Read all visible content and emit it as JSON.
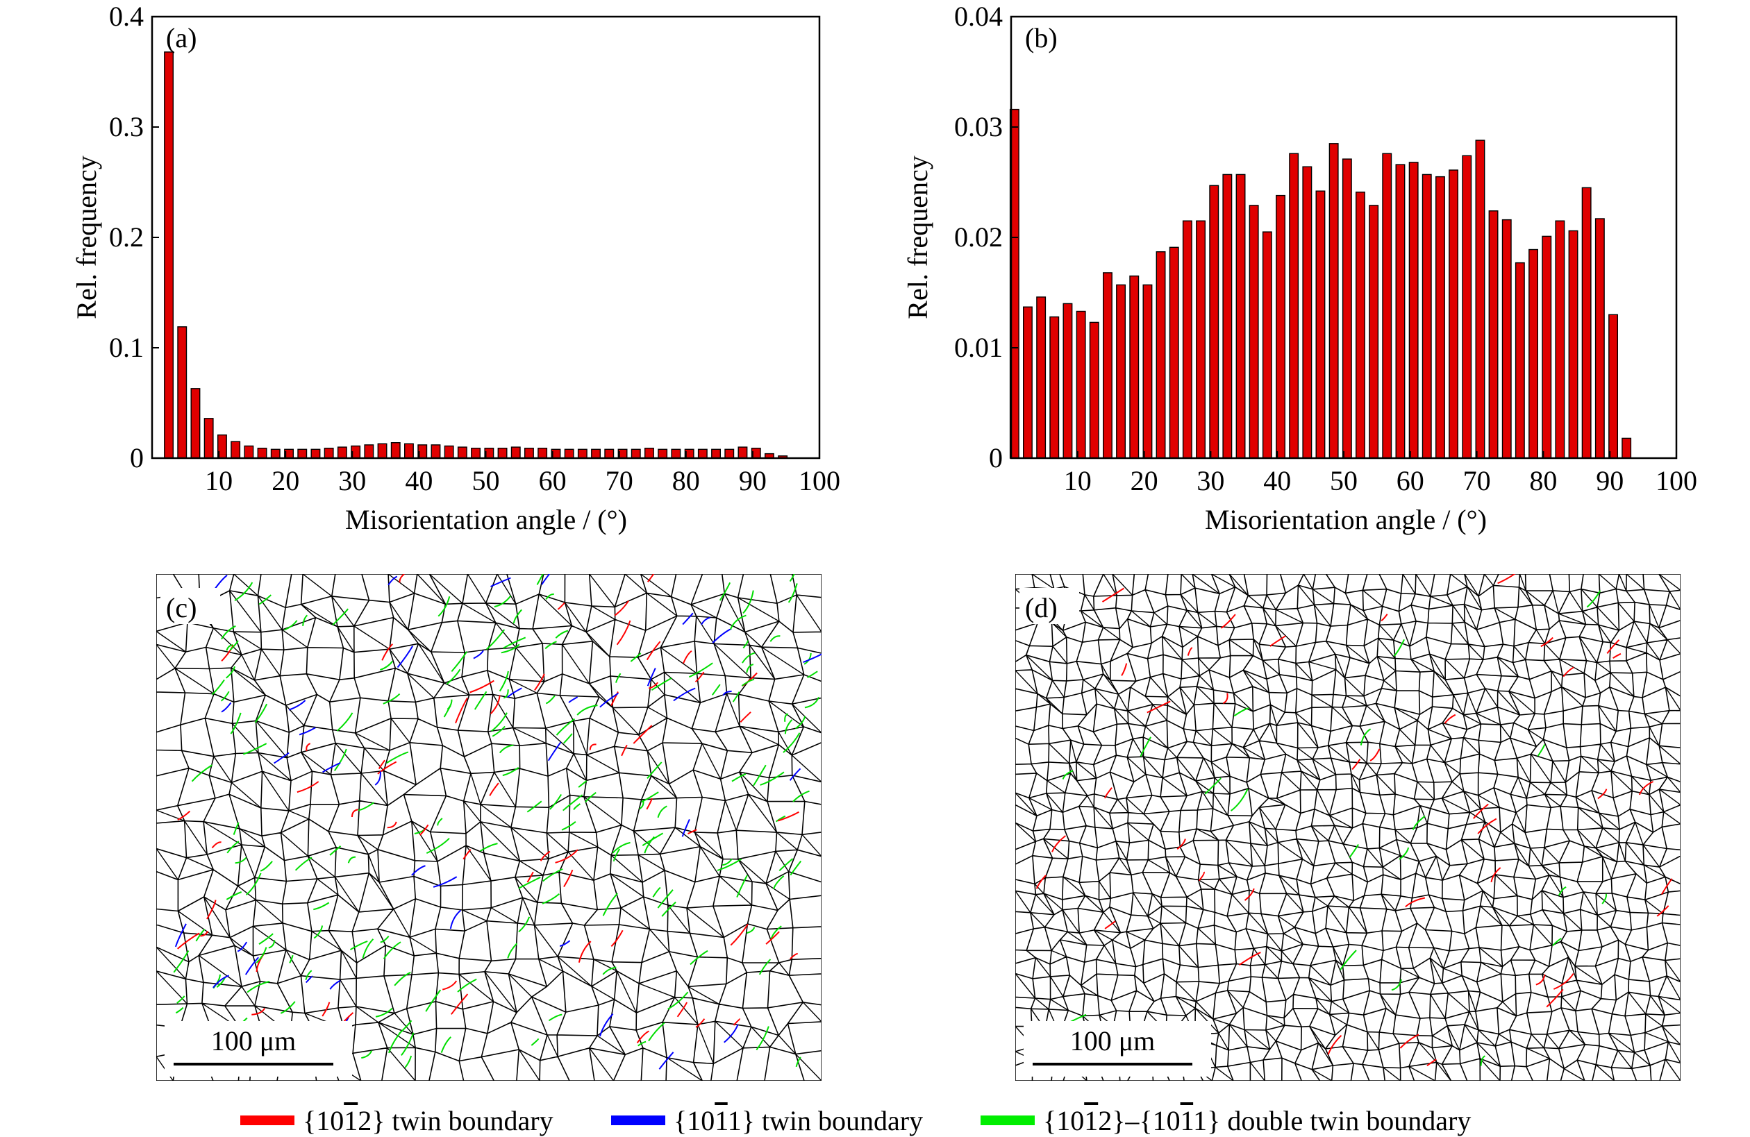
{
  "chart_data": [
    {
      "type": "bar",
      "panel": "(a)",
      "xlabel": "Misorientation angle / (°)",
      "ylabel": "Rel. frequency",
      "xlim": [
        0,
        100
      ],
      "ylim": [
        0,
        0.4
      ],
      "x_ticks": [
        10,
        20,
        30,
        40,
        50,
        60,
        70,
        80,
        90,
        100
      ],
      "y_ticks": [
        0,
        0.1,
        0.2,
        0.3,
        0.4
      ],
      "y_tick_labels": [
        "0",
        "0.1",
        "0.2",
        "0.3",
        "0.4"
      ],
      "x": [
        2.5,
        4.5,
        6.5,
        8.5,
        10.5,
        12.5,
        14.5,
        16.5,
        18.5,
        20.5,
        22.5,
        24.5,
        26.5,
        28.5,
        30.5,
        32.5,
        34.5,
        36.5,
        38.5,
        40.5,
        42.5,
        44.5,
        46.5,
        48.5,
        50.5,
        52.5,
        54.5,
        56.5,
        58.5,
        60.5,
        62.5,
        64.5,
        66.5,
        68.5,
        70.5,
        72.5,
        74.5,
        76.5,
        78.5,
        80.5,
        82.5,
        84.5,
        86.5,
        88.5,
        90.5,
        92.5,
        94.5
      ],
      "values": [
        0.368,
        0.119,
        0.063,
        0.036,
        0.021,
        0.015,
        0.011,
        0.009,
        0.008,
        0.008,
        0.008,
        0.008,
        0.009,
        0.01,
        0.011,
        0.012,
        0.013,
        0.014,
        0.013,
        0.012,
        0.012,
        0.011,
        0.01,
        0.009,
        0.009,
        0.009,
        0.01,
        0.009,
        0.009,
        0.008,
        0.008,
        0.008,
        0.008,
        0.008,
        0.008,
        0.008,
        0.009,
        0.008,
        0.008,
        0.008,
        0.008,
        0.008,
        0.008,
        0.01,
        0.009,
        0.004,
        0.002
      ]
    },
    {
      "type": "bar",
      "panel": "(b)",
      "xlabel": "Misorientation angle / (°)",
      "ylabel": "Rel. frequency",
      "xlim": [
        0,
        100
      ],
      "ylim": [
        0,
        0.04
      ],
      "x_ticks": [
        10,
        20,
        30,
        40,
        50,
        60,
        70,
        80,
        90,
        100
      ],
      "y_ticks": [
        0,
        0.01,
        0.02,
        0.03,
        0.04
      ],
      "y_tick_labels": [
        "0",
        "0.01",
        "0.02",
        "0.03",
        "0.04"
      ],
      "x": [
        0.5,
        2.5,
        4.5,
        6.5,
        8.5,
        10.5,
        12.5,
        14.5,
        16.5,
        18.5,
        20.5,
        22.5,
        24.5,
        26.5,
        28.5,
        30.5,
        32.5,
        34.5,
        36.5,
        38.5,
        40.5,
        42.5,
        44.5,
        46.5,
        48.5,
        50.5,
        52.5,
        54.5,
        56.5,
        58.5,
        60.5,
        62.5,
        64.5,
        66.5,
        68.5,
        70.5,
        72.5,
        74.5,
        76.5,
        78.5,
        80.5,
        82.5,
        84.5,
        86.5,
        88.5,
        90.5,
        92.5
      ],
      "values": [
        0.0316,
        0.0137,
        0.0146,
        0.0128,
        0.014,
        0.0133,
        0.0123,
        0.0168,
        0.0157,
        0.0165,
        0.0157,
        0.0187,
        0.0191,
        0.0215,
        0.0215,
        0.0247,
        0.0257,
        0.0257,
        0.0229,
        0.0205,
        0.0238,
        0.0276,
        0.0264,
        0.0242,
        0.0285,
        0.0271,
        0.0241,
        0.0229,
        0.0276,
        0.0266,
        0.0268,
        0.0257,
        0.0255,
        0.0261,
        0.0274,
        0.0288,
        0.0224,
        0.0216,
        0.0177,
        0.0189,
        0.0201,
        0.0215,
        0.0206,
        0.0245,
        0.0217,
        0.013,
        0.0018
      ]
    }
  ],
  "maps": {
    "c": {
      "panel": "(c)",
      "scale_label": "100 μm"
    },
    "d": {
      "panel": "(d)",
      "scale_label": "100 μm"
    }
  },
  "legend": {
    "items": [
      {
        "color": "#ff0000",
        "pre": "{10",
        "bar": "1",
        "post": "2} twin boundary"
      },
      {
        "color": "#0000ff",
        "pre": "{10",
        "bar": "1",
        "post": "1} twin boundary"
      },
      {
        "color": "#00ee00",
        "pre": "{10",
        "bar": "1",
        "mid": "2}–{10",
        "bar2": "1",
        "post": "1} double twin boundary"
      }
    ]
  },
  "colors": {
    "bar_fill": "#e00000",
    "bar_stroke": "#000000",
    "grain_boundary": "#000000"
  }
}
